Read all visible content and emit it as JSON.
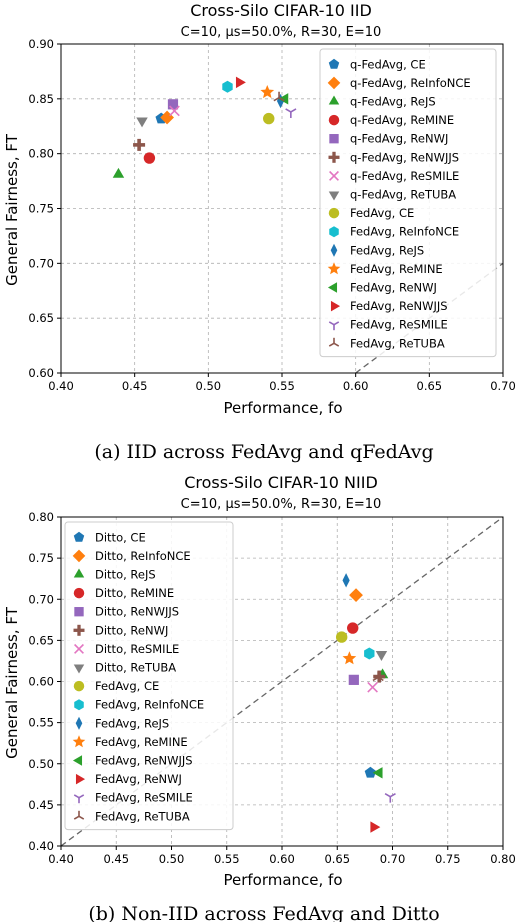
{
  "colors": {
    "blue": "#1f77b4",
    "orange": "#ff7f0e",
    "green": "#2ca02c",
    "red": "#d62728",
    "purple": "#9467bd",
    "brown": "#8c564b",
    "pink": "#e377c2",
    "gray": "#7f7f7f",
    "olive": "#bcbd22",
    "cyan": "#17becf"
  },
  "chart_data": [
    {
      "type": "scatter",
      "title": "Cross-Silo CIFAR-10 IID",
      "subtitle": "C=10, μs=50.0%, R=30, E=10",
      "xlabel": "Performance, fo",
      "ylabel": "General Fairness, FT",
      "xlim": [
        0.4,
        0.7
      ],
      "ylim": [
        0.6,
        0.9
      ],
      "xticks": [
        "0.40",
        "0.45",
        "0.50",
        "0.55",
        "0.60",
        "0.65",
        "0.70"
      ],
      "yticks": [
        "0.60",
        "0.65",
        "0.70",
        "0.75",
        "0.80",
        "0.85",
        "0.90"
      ],
      "grid": true,
      "diagonal": true,
      "legend_position": "upper-right",
      "caption": "(a) IID across FedAvg and qFedAvg",
      "series": [
        {
          "name": "q-FedAvg, CE",
          "marker": "pentagon",
          "color": "blue",
          "x": 0.468,
          "y": 0.832
        },
        {
          "name": "q-FedAvg, ReInfoNCE",
          "marker": "diamond",
          "color": "orange",
          "x": 0.472,
          "y": 0.833
        },
        {
          "name": "q-FedAvg, ReJS",
          "marker": "triangle-up",
          "color": "green",
          "x": 0.439,
          "y": 0.781
        },
        {
          "name": "q-FedAvg, ReMINE",
          "marker": "circle",
          "color": "red",
          "x": 0.46,
          "y": 0.796
        },
        {
          "name": "q-FedAvg, ReNWJ",
          "marker": "square",
          "color": "purple",
          "x": 0.476,
          "y": 0.845
        },
        {
          "name": "q-FedAvg, ReNWJJS",
          "marker": "plus",
          "color": "brown",
          "x": 0.453,
          "y": 0.808
        },
        {
          "name": "q-FedAvg, ReSMILE",
          "marker": "x",
          "color": "pink",
          "x": 0.477,
          "y": 0.839
        },
        {
          "name": "q-FedAvg, ReTUBA",
          "marker": "triangle-down",
          "color": "gray",
          "x": 0.455,
          "y": 0.83
        },
        {
          "name": "FedAvg, CE",
          "marker": "circle",
          "color": "olive",
          "x": 0.541,
          "y": 0.832
        },
        {
          "name": "FedAvg, ReInfoNCE",
          "marker": "hexagon",
          "color": "cyan",
          "x": 0.513,
          "y": 0.861
        },
        {
          "name": "FedAvg, ReJS",
          "marker": "thin-diamond",
          "color": "blue",
          "x": 0.549,
          "y": 0.848
        },
        {
          "name": "FedAvg, ReMINE",
          "marker": "star",
          "color": "orange",
          "x": 0.54,
          "y": 0.856
        },
        {
          "name": "FedAvg, ReNWJ",
          "marker": "triangle-left",
          "color": "green",
          "x": 0.552,
          "y": 0.85
        },
        {
          "name": "FedAvg, ReNWJJS",
          "marker": "triangle-right",
          "color": "red",
          "x": 0.521,
          "y": 0.865
        },
        {
          "name": "FedAvg, ReSMILE",
          "marker": "tri-down",
          "color": "purple",
          "x": 0.556,
          "y": 0.838
        },
        {
          "name": "FedAvg, ReTUBA",
          "marker": "tri-up",
          "color": "brown",
          "x": 0.548,
          "y": 0.851
        }
      ]
    },
    {
      "type": "scatter",
      "title": "Cross-Silo CIFAR-10 NIID",
      "subtitle": "C=10, μs=50.0%, R=30, E=10",
      "xlabel": "Performance, fo",
      "ylabel": "General Fairness, FT",
      "xlim": [
        0.4,
        0.8
      ],
      "ylim": [
        0.4,
        0.8
      ],
      "xticks": [
        "0.40",
        "0.45",
        "0.50",
        "0.55",
        "0.60",
        "0.65",
        "0.70",
        "0.75",
        "0.80"
      ],
      "yticks": [
        "0.40",
        "0.45",
        "0.50",
        "0.55",
        "0.60",
        "0.65",
        "0.70",
        "0.75",
        "0.80"
      ],
      "grid": true,
      "diagonal": true,
      "legend_position": "upper-left",
      "caption": "(b) Non-IID across FedAvg and Ditto",
      "series": [
        {
          "name": "Ditto, CE",
          "marker": "pentagon",
          "color": "blue",
          "x": 0.68,
          "y": 0.489
        },
        {
          "name": "Ditto, ReInfoNCE",
          "marker": "diamond",
          "color": "orange",
          "x": 0.667,
          "y": 0.705
        },
        {
          "name": "Ditto, ReJS",
          "marker": "triangle-up",
          "color": "green",
          "x": 0.691,
          "y": 0.608
        },
        {
          "name": "Ditto, ReMINE",
          "marker": "circle",
          "color": "red",
          "x": 0.664,
          "y": 0.665
        },
        {
          "name": "Ditto, ReNWJJS",
          "marker": "square",
          "color": "purple",
          "x": 0.665,
          "y": 0.602
        },
        {
          "name": "Ditto, ReNWJ",
          "marker": "plus",
          "color": "brown",
          "x": 0.688,
          "y": 0.606
        },
        {
          "name": "Ditto, ReSMILE",
          "marker": "x",
          "color": "pink",
          "x": 0.682,
          "y": 0.593
        },
        {
          "name": "Ditto, ReTUBA",
          "marker": "triangle-down",
          "color": "gray",
          "x": 0.69,
          "y": 0.633
        },
        {
          "name": "FedAvg, CE",
          "marker": "circle",
          "color": "olive",
          "x": 0.654,
          "y": 0.654
        },
        {
          "name": "FedAvg, ReInfoNCE",
          "marker": "hexagon",
          "color": "cyan",
          "x": 0.679,
          "y": 0.634
        },
        {
          "name": "FedAvg, ReJS",
          "marker": "thin-diamond",
          "color": "blue",
          "x": 0.658,
          "y": 0.723
        },
        {
          "name": "FedAvg, ReMINE",
          "marker": "star",
          "color": "orange",
          "x": 0.661,
          "y": 0.628
        },
        {
          "name": "FedAvg, ReNWJJS",
          "marker": "triangle-left",
          "color": "green",
          "x": 0.688,
          "y": 0.489
        },
        {
          "name": "FedAvg, ReNWJ",
          "marker": "triangle-right",
          "color": "red",
          "x": 0.683,
          "y": 0.423
        },
        {
          "name": "FedAvg, ReSMILE",
          "marker": "tri-down",
          "color": "purple",
          "x": 0.698,
          "y": 0.46
        },
        {
          "name": "FedAvg, ReTUBA",
          "marker": "tri-up",
          "color": "brown",
          "x": 0.687,
          "y": 0.605
        }
      ]
    }
  ]
}
